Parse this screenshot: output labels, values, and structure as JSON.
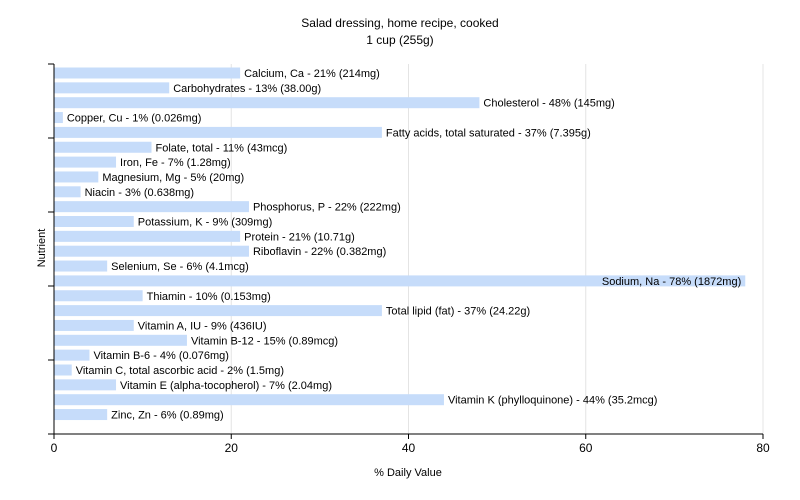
{
  "chart_data": {
    "type": "bar",
    "orientation": "horizontal",
    "title": "Salad dressing, home recipe, cooked",
    "subtitle": "1 cup (255g)",
    "xlabel": "% Daily Value",
    "ylabel": "Nutrient",
    "xlim": [
      0,
      80
    ],
    "xticks": [
      0,
      20,
      40,
      60,
      80
    ],
    "grid": true,
    "bar_color": "#c6dcfa",
    "categories": [
      "Calcium, Ca",
      "Carbohydrates",
      "Cholesterol",
      "Copper, Cu",
      "Fatty acids, total saturated",
      "Folate, total",
      "Iron, Fe",
      "Magnesium, Mg",
      "Niacin",
      "Phosphorus, P",
      "Potassium, K",
      "Protein",
      "Riboflavin",
      "Selenium, Se",
      "Sodium, Na",
      "Thiamin",
      "Total lipid (fat)",
      "Vitamin A, IU",
      "Vitamin B-12",
      "Vitamin B-6",
      "Vitamin C, total ascorbic acid",
      "Vitamin E (alpha-tocopherol)",
      "Vitamin K (phylloquinone)",
      "Zinc, Zn"
    ],
    "values": [
      21,
      13,
      48,
      1,
      37,
      11,
      7,
      5,
      3,
      22,
      9,
      21,
      22,
      6,
      78,
      10,
      37,
      9,
      15,
      4,
      2,
      7,
      44,
      6
    ],
    "labels": [
      "Calcium, Ca - 21% (214mg)",
      "Carbohydrates - 13% (38.00g)",
      "Cholesterol - 48% (145mg)",
      "Copper, Cu - 1% (0.026mg)",
      "Fatty acids, total saturated - 37% (7.395g)",
      "Folate, total - 11% (43mcg)",
      "Iron, Fe - 7% (1.28mg)",
      "Magnesium, Mg - 5% (20mg)",
      "Niacin - 3% (0.638mg)",
      "Phosphorus, P - 22% (222mg)",
      "Potassium, K - 9% (309mg)",
      "Protein - 21% (10.71g)",
      "Riboflavin - 22% (0.382mg)",
      "Selenium, Se - 6% (4.1mcg)",
      "Sodium, Na - 78% (1872mg)",
      "Thiamin - 10% (0.153mg)",
      "Total lipid (fat) - 37% (24.22g)",
      "Vitamin A, IU - 9% (436IU)",
      "Vitamin B-12 - 15% (0.89mcg)",
      "Vitamin B-6 - 4% (0.076mg)",
      "Vitamin C, total ascorbic acid - 2% (1.5mg)",
      "Vitamin E (alpha-tocopherol) - 7% (2.04mg)",
      "Vitamin K (phylloquinone) - 44% (35.2mcg)",
      "Zinc, Zn - 6% (0.89mg)"
    ]
  }
}
